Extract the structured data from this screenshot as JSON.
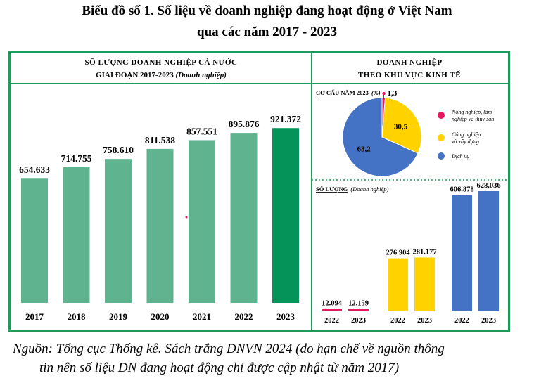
{
  "title": {
    "line1": "Biểu đồ số 1. Số liệu về doanh nghiệp đang hoạt động ở Việt Nam",
    "line2": "qua các năm 2017 - 2023"
  },
  "source": {
    "line1": "Nguồn: Tổng cục Thống kê.  Sách trắng DNVN 2024 (do hạn chế về nguồn thông",
    "line2": "tin nên số liệu DN đang hoạt động chỉ được cập nhật từ năm 2017)"
  },
  "colors": {
    "frame": "#1e9a5a",
    "bar": "#5fb38f",
    "bar_highlight": "#06935a",
    "agriculture": "#e8195f",
    "industry": "#ffd200",
    "services": "#4472c4"
  },
  "chart_data": [
    {
      "type": "bar",
      "title_line1": "SỐ LƯỢNG DOANH NGHIỆP CẢ NƯỚC",
      "title_line2": "GIAI ĐOẠN 2017-2023",
      "title_unit": "(Doanh nghiệp)",
      "categories": [
        "2017",
        "2018",
        "2019",
        "2020",
        "2021",
        "2022",
        "2023"
      ],
      "values": [
        654633,
        714755,
        758610,
        811538,
        857551,
        895876,
        921372
      ],
      "labels": [
        "654.633",
        "714.755",
        "758.610",
        "811.538",
        "857.551",
        "895.876",
        "921.372"
      ],
      "highlight": "2023"
    },
    {
      "type": "pie",
      "panel_title_line1": "DOANH NGHIỆP",
      "panel_title_line2": "THEO KHU VỰC KINH TẾ",
      "title": "CƠ CẤU NĂM 2023",
      "title_unit": "(%)",
      "slices": [
        {
          "name": "Nông nghiệp, lâm nghiệp và thủy sản",
          "value": 1.3,
          "label": "1,3",
          "color": "#e8195f"
        },
        {
          "name": "Công nghiệp và xây dựng",
          "value": 30.5,
          "label": "30,5",
          "color": "#ffd200"
        },
        {
          "name": "Dịch vụ",
          "value": 68.2,
          "label": "68,2",
          "color": "#4472c4"
        }
      ],
      "legend": [
        {
          "line1": "Nông nghiệp, lâm",
          "line2": "nghiệp và thủy sản"
        },
        {
          "line1": "Công nghiệp",
          "line2": "và xây dựng"
        },
        {
          "line1": "Dịch vụ",
          "line2": ""
        }
      ],
      "legend_position": "right"
    },
    {
      "type": "bar",
      "title": "SỐ LƯỢNG",
      "title_unit": "(Doanh nghiệp)",
      "groups": [
        {
          "name": "Nông nghiệp, lâm nghiệp và thủy sản",
          "color": "#e8195f",
          "categories": [
            "2022",
            "2023"
          ],
          "values": [
            12094,
            12159
          ],
          "labels": [
            "12.094",
            "12.159"
          ]
        },
        {
          "name": "Công nghiệp và xây dựng",
          "color": "#ffd200",
          "categories": [
            "2022",
            "2023"
          ],
          "values": [
            276904,
            281177
          ],
          "labels": [
            "276.904",
            "281.177"
          ]
        },
        {
          "name": "Dịch vụ",
          "color": "#4472c4",
          "categories": [
            "2022",
            "2023"
          ],
          "values": [
            606878,
            628036
          ],
          "labels": [
            "606.878",
            "628.036"
          ]
        }
      ]
    }
  ]
}
